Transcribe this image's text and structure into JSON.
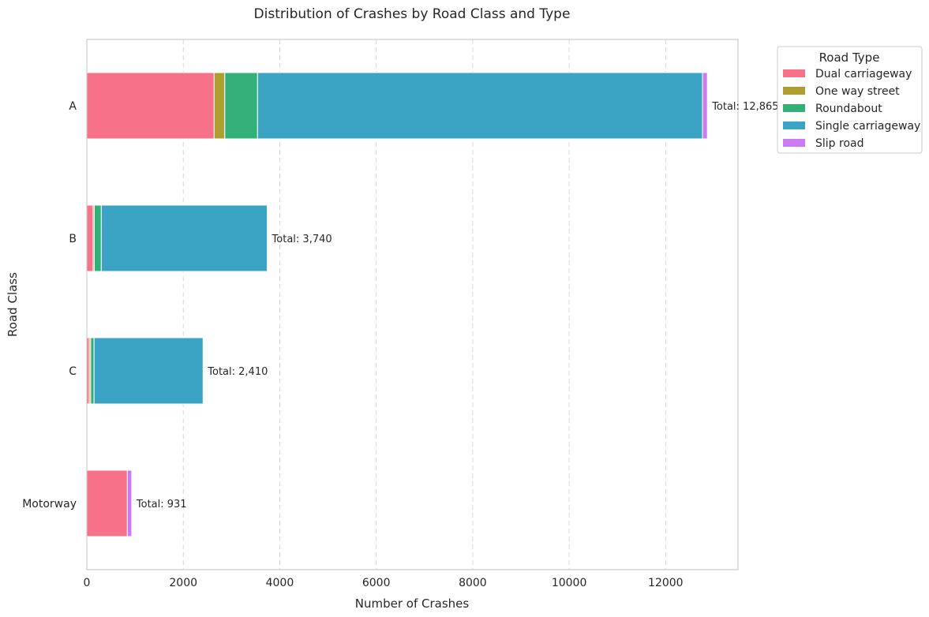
{
  "chart_data": {
    "type": "bar",
    "orientation": "horizontal",
    "stacked": true,
    "title": "Distribution of Crashes by Road Class and Type",
    "xlabel": "Number of Crashes",
    "ylabel": "Road Class",
    "xlim": [
      0,
      13500
    ],
    "xticks": [
      0,
      2000,
      4000,
      6000,
      8000,
      10000,
      12000
    ],
    "grid": "x-dashed",
    "categories": [
      "A",
      "B",
      "C",
      "Motorway"
    ],
    "series": [
      {
        "name": "Dual carriageway",
        "color": "#f77189",
        "values": [
          2640,
          130,
          50,
          840
        ]
      },
      {
        "name": "One way street",
        "color": "#ae9d31",
        "values": [
          220,
          25,
          30,
          0
        ]
      },
      {
        "name": "Roundabout",
        "color": "#33b07a",
        "values": [
          680,
          145,
          70,
          0
        ]
      },
      {
        "name": "Single carriageway",
        "color": "#3ba3c3",
        "values": [
          9225,
          3440,
          2260,
          0
        ]
      },
      {
        "name": "Slip road",
        "color": "#cc7af4",
        "values": [
          100,
          0,
          0,
          91
        ]
      }
    ],
    "totals": [
      "Total: 12,865",
      "Total: 3,740",
      "Total: 2,410",
      "Total: 931"
    ],
    "legend": {
      "title": "Road Type",
      "placement": "outside-upper-right"
    }
  }
}
